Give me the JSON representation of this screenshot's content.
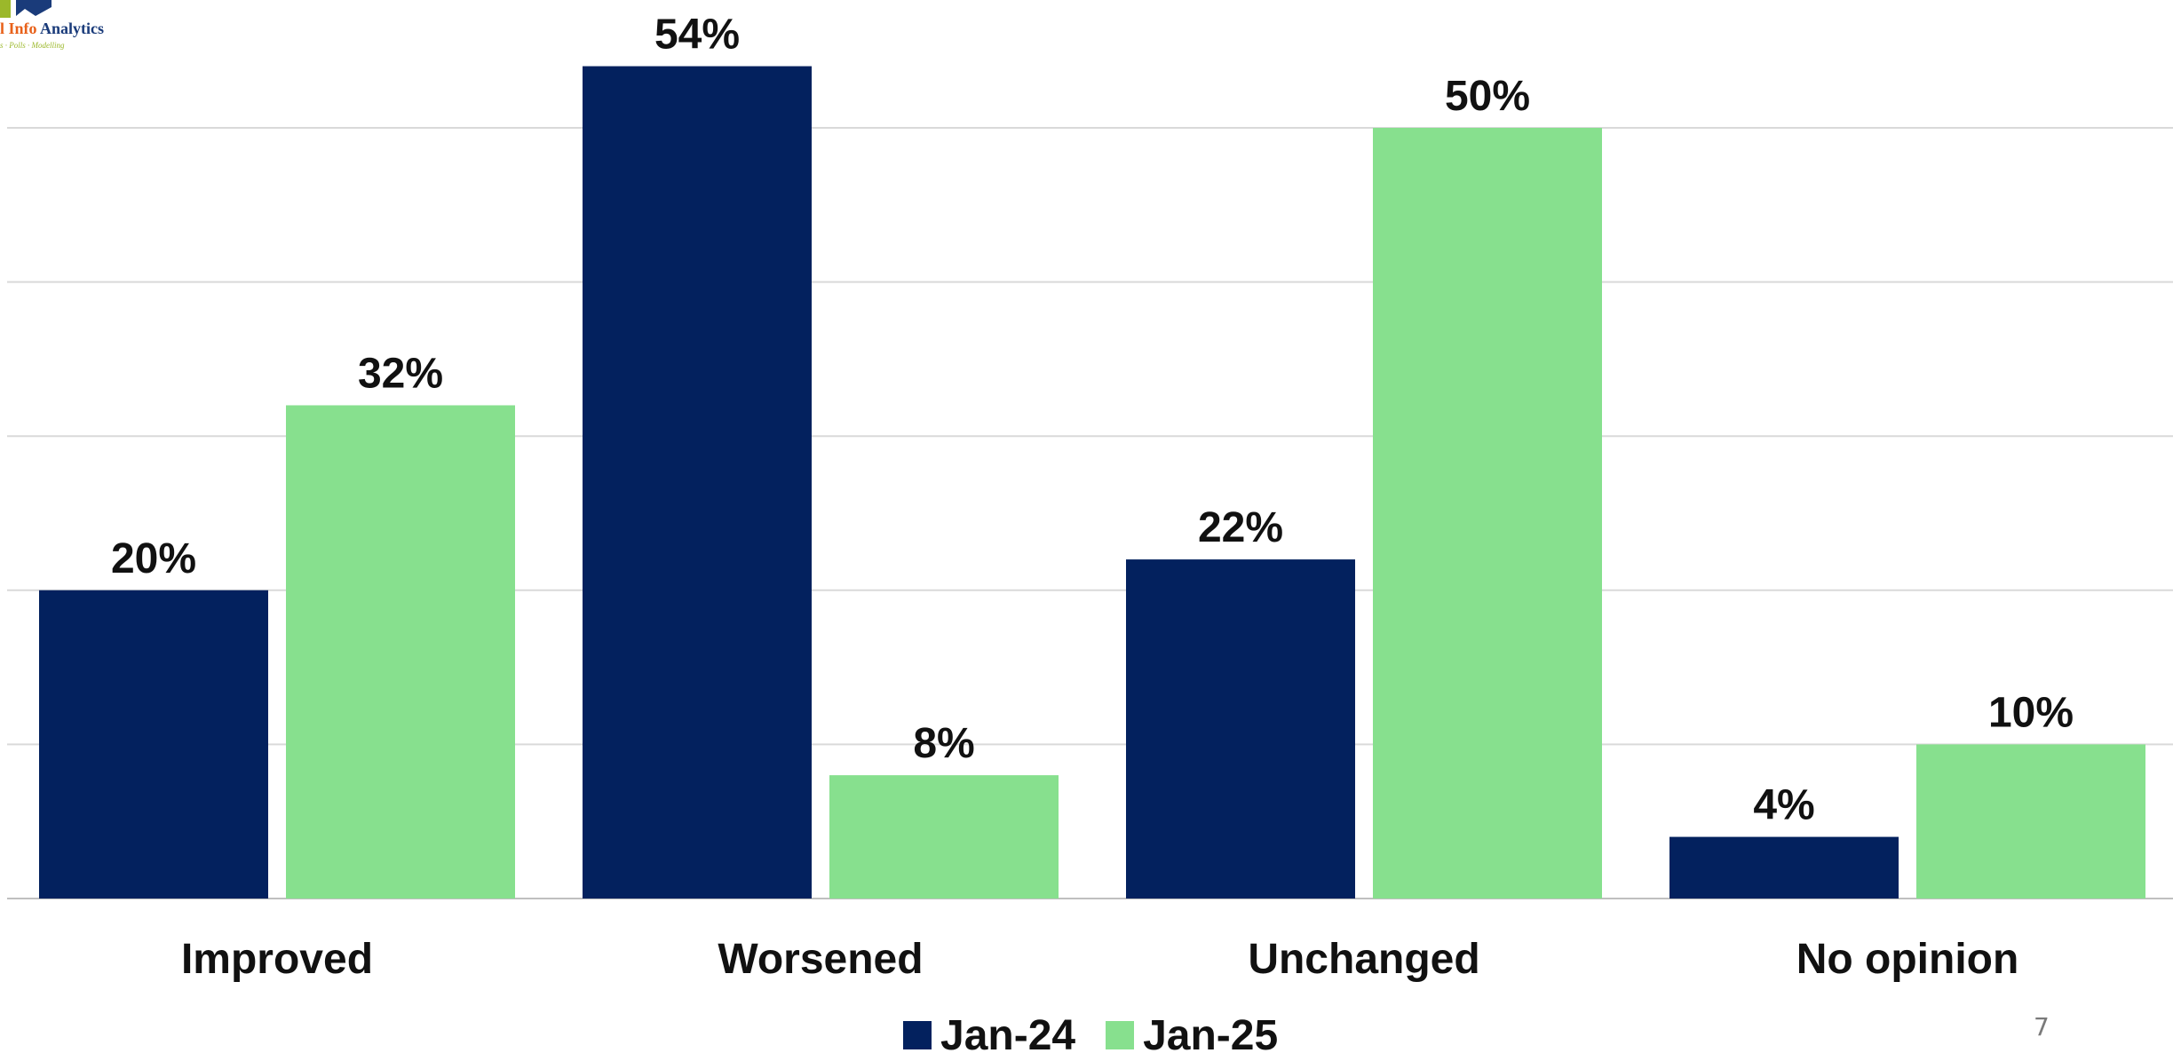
{
  "logo": {
    "text_part1": "l Info",
    "text_part2": "Analytics",
    "tagline": "s · Polls · Modelling"
  },
  "page_number": "7",
  "colors": {
    "jan24": "#03215e",
    "jan25": "#87e08e",
    "grid": "#d9d9d9",
    "axis": "#bfbfbf",
    "label": "#111111"
  },
  "chart_data": {
    "type": "bar",
    "categories": [
      "Improved",
      "Worsened",
      "Unchanged",
      "No opinion"
    ],
    "series": [
      {
        "name": "Jan-24",
        "values": [
          20,
          54,
          22,
          4
        ]
      },
      {
        "name": "Jan-25",
        "values": [
          32,
          8,
          50,
          10
        ]
      }
    ],
    "data_labels": [
      [
        "20%",
        "54%",
        "22%",
        "4%"
      ],
      [
        "32%",
        "8%",
        "50%",
        "10%"
      ]
    ],
    "ylim": [
      0,
      60
    ],
    "grid_step": 10,
    "grid": true,
    "y_tick_labels_visible": false,
    "legend_position": "bottom-center",
    "title": "",
    "xlabel": "",
    "ylabel": ""
  }
}
